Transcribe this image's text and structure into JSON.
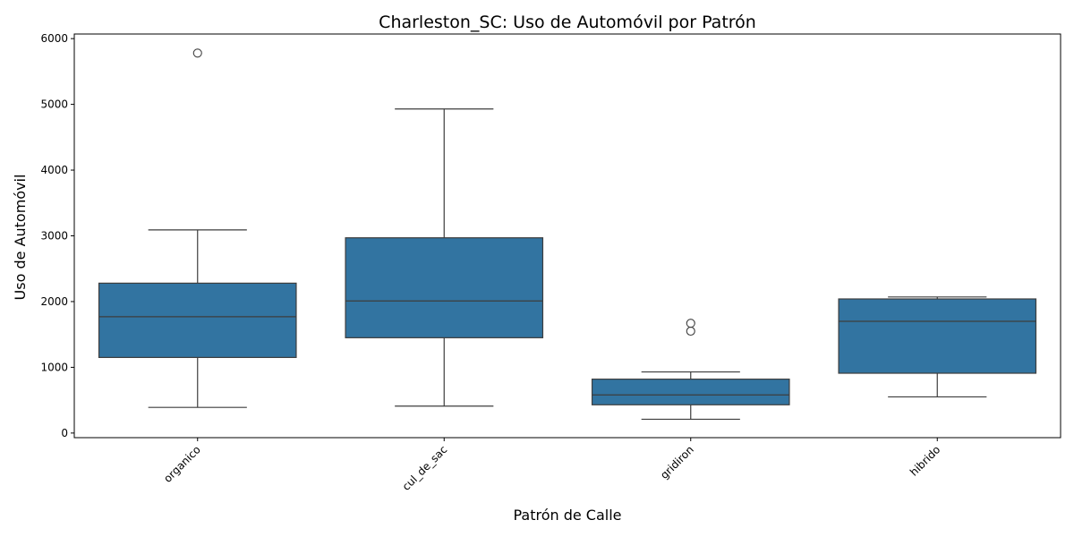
{
  "chart_data": {
    "type": "box",
    "title": "Charleston_SC: Uso de Automóvil por Patrón",
    "xlabel": "Patrón de Calle",
    "ylabel": "Uso de Automóvil",
    "ylim": [
      -70,
      6070
    ],
    "yticks": [
      0,
      1000,
      2000,
      3000,
      4000,
      5000,
      6000
    ],
    "grid": false,
    "box_color": "#3274a1",
    "line_color": "#3d3d3d",
    "categories": [
      "organico",
      "cul_de_sac",
      "gridiron",
      "hibrido"
    ],
    "boxes": [
      {
        "category": "organico",
        "whisker_low": 390,
        "q1": 1150,
        "median": 1770,
        "q3": 2280,
        "whisker_high": 3090,
        "outliers": [
          5780
        ]
      },
      {
        "category": "cul_de_sac",
        "whisker_low": 410,
        "q1": 1450,
        "median": 2010,
        "q3": 2970,
        "whisker_high": 4930,
        "outliers": []
      },
      {
        "category": "gridiron",
        "whisker_low": 210,
        "q1": 430,
        "median": 580,
        "q3": 820,
        "whisker_high": 930,
        "outliers": [
          1550,
          1670
        ]
      },
      {
        "category": "hibrido",
        "whisker_low": 550,
        "q1": 910,
        "median": 1700,
        "q3": 2040,
        "whisker_high": 2070,
        "outliers": []
      }
    ]
  }
}
